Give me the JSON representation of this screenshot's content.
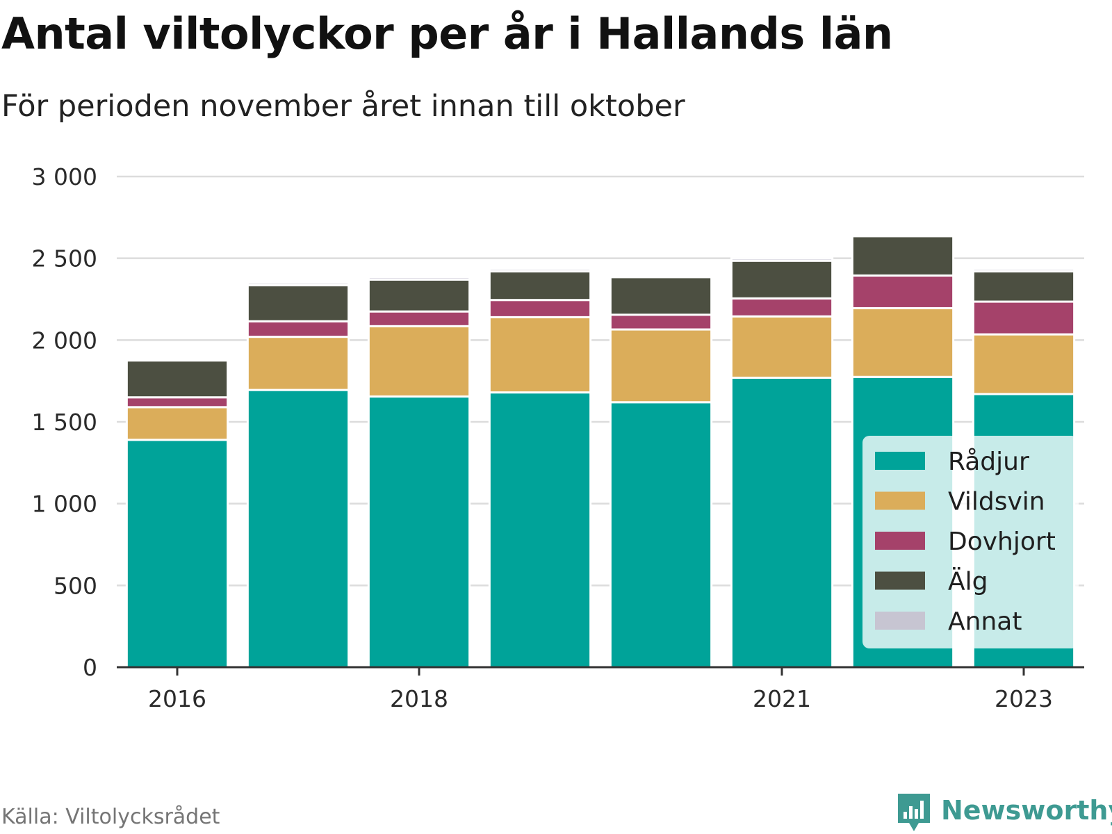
{
  "title": "Antal viltolyckor per år i Hallands län",
  "subtitle": "För perioden november året innan till oktober",
  "source": "Källa: Viltolycksrådet",
  "brand": {
    "name": "Newsworthy",
    "color": "#3e9a92",
    "icon": "newsworthy-chart-icon"
  },
  "chart_data": {
    "type": "bar",
    "stacked": true,
    "categories": [
      "2016",
      "2017",
      "2018",
      "2019",
      "2020",
      "2021",
      "2022",
      "2023"
    ],
    "x_tick_labels": [
      "2016",
      "",
      "2018",
      "",
      "",
      "2021",
      "",
      "2023"
    ],
    "y_ticks": [
      0,
      500,
      1000,
      1500,
      2000,
      2500,
      3000
    ],
    "y_tick_labels": [
      "0",
      "500",
      "1 000",
      "1 500",
      "2 000",
      "2 500",
      "3 000"
    ],
    "ylim": [
      0,
      3000
    ],
    "grid": true,
    "legend_position": "bottom-right",
    "series": [
      {
        "name": "Rådjur",
        "color": "#00a399",
        "values": [
          1390,
          1695,
          1655,
          1680,
          1620,
          1770,
          1775,
          1670
        ]
      },
      {
        "name": "Vildsvin",
        "color": "#dbad5a",
        "values": [
          200,
          325,
          430,
          460,
          445,
          375,
          420,
          365
        ]
      },
      {
        "name": "Dovhjort",
        "color": "#a5426a",
        "values": [
          60,
          95,
          90,
          105,
          90,
          110,
          200,
          200
        ]
      },
      {
        "name": "Älg",
        "color": "#4c4f41",
        "values": [
          225,
          220,
          195,
          175,
          230,
          230,
          240,
          185
        ]
      },
      {
        "name": "Annat",
        "color": "#c7c5d2",
        "values": [
          0,
          15,
          15,
          15,
          10,
          15,
          0,
          15
        ]
      }
    ]
  }
}
